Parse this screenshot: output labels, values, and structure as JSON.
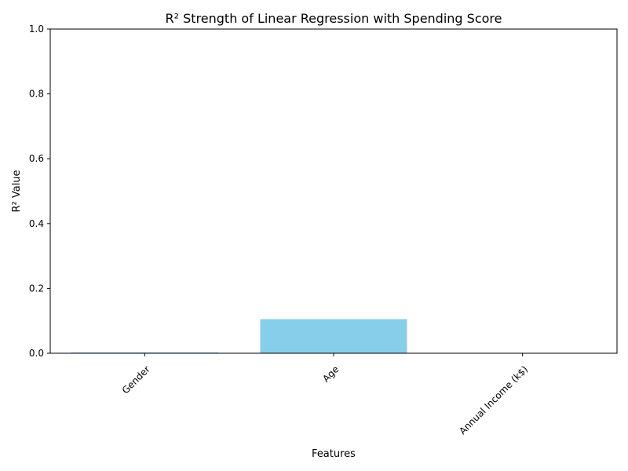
{
  "chart_data": {
    "type": "bar",
    "title": "R² Strength of Linear Regression with Spending Score",
    "xlabel": "Features",
    "ylabel": "R² Value",
    "categories": [
      "Gender",
      "Age",
      "Annual Income (k$)"
    ],
    "values": [
      0.0026,
      0.1052,
      0.0001
    ],
    "ylim": [
      0,
      1
    ],
    "yticks": [
      "0.0",
      "0.2",
      "0.4",
      "0.6",
      "0.8",
      "1.0"
    ],
    "grid": false,
    "bar_color": "#87CEEB"
  }
}
